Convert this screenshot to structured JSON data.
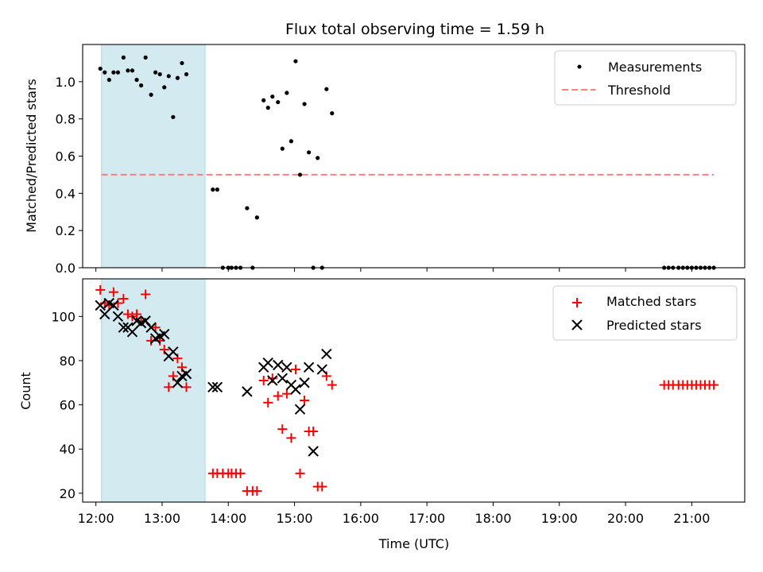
{
  "chart_data": [
    {
      "type": "scatter",
      "title": "Flux total observing time = 1.59 h",
      "xlabel": "",
      "ylabel": "Matched/Predicted stars",
      "ylim": [
        0,
        1.2
      ],
      "yticks": [
        "0.0",
        "0.2",
        "0.4",
        "0.6",
        "0.8",
        "1.0"
      ],
      "x_range_hours": [
        11.8,
        21.8
      ],
      "shaded_span": {
        "from": "12:05",
        "to": "13:39",
        "color": "#d3eaf1"
      },
      "legend": {
        "placement": "top-right",
        "entries": [
          "Measurements",
          "Threshold"
        ]
      },
      "threshold": {
        "name": "Threshold",
        "value": 0.5,
        "from": "12:05",
        "to": "21:20",
        "color": "#ff7f7f",
        "style": "dashed"
      },
      "series": [
        {
          "name": "Measurements",
          "marker": "dot",
          "color": "#000000",
          "points": [
            [
              "12:04",
              1.07
            ],
            [
              "12:08",
              1.05
            ],
            [
              "12:12",
              1.01
            ],
            [
              "12:16",
              1.05
            ],
            [
              "12:20",
              1.05
            ],
            [
              "12:25",
              1.13
            ],
            [
              "12:29",
              1.06
            ],
            [
              "12:33",
              1.06
            ],
            [
              "12:37",
              1.01
            ],
            [
              "12:41",
              0.98
            ],
            [
              "12:45",
              1.13
            ],
            [
              "12:50",
              0.93
            ],
            [
              "12:54",
              1.05
            ],
            [
              "12:58",
              1.04
            ],
            [
              "13:02",
              0.97
            ],
            [
              "13:06",
              1.03
            ],
            [
              "13:10",
              0.81
            ],
            [
              "13:14",
              1.02
            ],
            [
              "13:18",
              1.1
            ],
            [
              "13:22",
              1.04
            ],
            [
              "13:46",
              0.42
            ],
            [
              "13:50",
              0.42
            ],
            [
              "13:55",
              0.0
            ],
            [
              "14:00",
              0.0
            ],
            [
              "14:03",
              0.0
            ],
            [
              "14:07",
              0.0
            ],
            [
              "14:11",
              0.0
            ],
            [
              "14:17",
              0.32
            ],
            [
              "14:22",
              0.0
            ],
            [
              "14:26",
              0.27
            ],
            [
              "14:32",
              0.9
            ],
            [
              "14:36",
              0.86
            ],
            [
              "14:40",
              0.92
            ],
            [
              "14:45",
              0.89
            ],
            [
              "14:49",
              0.64
            ],
            [
              "14:53",
              0.94
            ],
            [
              "14:57",
              0.68
            ],
            [
              "15:01",
              1.11
            ],
            [
              "15:05",
              0.5
            ],
            [
              "15:09",
              0.88
            ],
            [
              "15:13",
              0.62
            ],
            [
              "15:17",
              0.0
            ],
            [
              "15:21",
              0.59
            ],
            [
              "15:25",
              0.0
            ],
            [
              "15:29",
              0.96
            ],
            [
              "15:34",
              0.83
            ],
            [
              "20:35",
              0.0
            ],
            [
              "20:39",
              0.0
            ],
            [
              "20:43",
              0.0
            ],
            [
              "20:48",
              0.0
            ],
            [
              "20:52",
              0.0
            ],
            [
              "20:56",
              0.0
            ],
            [
              "21:00",
              0.0
            ],
            [
              "21:04",
              0.0
            ],
            [
              "21:08",
              0.0
            ],
            [
              "21:12",
              0.0
            ],
            [
              "21:16",
              0.0
            ],
            [
              "21:20",
              0.0
            ]
          ]
        }
      ]
    },
    {
      "type": "scatter",
      "title": "",
      "xlabel": "Time (UTC)",
      "ylabel": "Count",
      "ylim": [
        16,
        117
      ],
      "yticks": [
        "20",
        "40",
        "60",
        "80",
        "100"
      ],
      "xticks": [
        "12:00",
        "13:00",
        "14:00",
        "15:00",
        "16:00",
        "17:00",
        "18:00",
        "19:00",
        "20:00",
        "21:00"
      ],
      "x_range_hours": [
        11.8,
        21.8
      ],
      "shaded_span": {
        "from": "12:05",
        "to": "13:39",
        "color": "#d3eaf1"
      },
      "legend": {
        "placement": "top-right",
        "entries": [
          "Matched stars",
          "Predicted stars"
        ]
      },
      "series": [
        {
          "name": "Matched stars",
          "marker": "plus",
          "color": "#ff0000",
          "points": [
            [
              "12:04",
              112
            ],
            [
              "12:08",
              106
            ],
            [
              "12:12",
              105
            ],
            [
              "12:16",
              111
            ],
            [
              "12:20",
              106
            ],
            [
              "12:25",
              108
            ],
            [
              "12:29",
              101
            ],
            [
              "12:33",
              100
            ],
            [
              "12:37",
              101
            ],
            [
              "12:41",
              98
            ],
            [
              "12:45",
              110
            ],
            [
              "12:50",
              89
            ],
            [
              "12:54",
              95
            ],
            [
              "12:58",
              89
            ],
            [
              "13:02",
              85
            ],
            [
              "13:06",
              68
            ],
            [
              "13:10",
              73
            ],
            [
              "13:14",
              81
            ],
            [
              "13:18",
              77
            ],
            [
              "13:22",
              68
            ],
            [
              "13:46",
              29
            ],
            [
              "13:50",
              29
            ],
            [
              "13:55",
              29
            ],
            [
              "14:00",
              29
            ],
            [
              "14:03",
              29
            ],
            [
              "14:07",
              29
            ],
            [
              "14:11",
              29
            ],
            [
              "14:17",
              21
            ],
            [
              "14:22",
              21
            ],
            [
              "14:26",
              21
            ],
            [
              "14:32",
              71
            ],
            [
              "14:36",
              61
            ],
            [
              "14:40",
              72
            ],
            [
              "14:45",
              64
            ],
            [
              "14:49",
              49
            ],
            [
              "14:53",
              65
            ],
            [
              "14:57",
              45
            ],
            [
              "15:01",
              76
            ],
            [
              "15:05",
              29
            ],
            [
              "15:09",
              62
            ],
            [
              "15:13",
              48
            ],
            [
              "15:17",
              48
            ],
            [
              "15:21",
              23
            ],
            [
              "15:25",
              23
            ],
            [
              "15:29",
              73
            ],
            [
              "15:34",
              69
            ],
            [
              "20:35",
              69
            ],
            [
              "20:39",
              69
            ],
            [
              "20:43",
              69
            ],
            [
              "20:48",
              69
            ],
            [
              "20:52",
              69
            ],
            [
              "20:56",
              69
            ],
            [
              "21:00",
              69
            ],
            [
              "21:04",
              69
            ],
            [
              "21:08",
              69
            ],
            [
              "21:12",
              69
            ],
            [
              "21:16",
              69
            ],
            [
              "21:20",
              69
            ]
          ]
        },
        {
          "name": "Predicted stars",
          "marker": "x",
          "color": "#000000",
          "points": [
            [
              "12:04",
              105
            ],
            [
              "12:08",
              101
            ],
            [
              "12:12",
              106
            ],
            [
              "12:16",
              105
            ],
            [
              "12:20",
              100
            ],
            [
              "12:25",
              95
            ],
            [
              "12:29",
              95
            ],
            [
              "12:33",
              93
            ],
            [
              "12:37",
              98
            ],
            [
              "12:41",
              97
            ],
            [
              "12:45",
              98
            ],
            [
              "12:50",
              95
            ],
            [
              "12:54",
              90
            ],
            [
              "12:58",
              91
            ],
            [
              "13:02",
              92
            ],
            [
              "13:06",
              82
            ],
            [
              "13:10",
              84
            ],
            [
              "13:14",
              70
            ],
            [
              "13:18",
              73
            ],
            [
              "13:22",
              74
            ],
            [
              "13:46",
              68
            ],
            [
              "13:50",
              68
            ],
            [
              "14:17",
              66
            ],
            [
              "14:32",
              77
            ],
            [
              "14:36",
              79
            ],
            [
              "14:40",
              71
            ],
            [
              "14:45",
              78
            ],
            [
              "14:49",
              72
            ],
            [
              "14:53",
              77
            ],
            [
              "14:57",
              69
            ],
            [
              "15:01",
              67
            ],
            [
              "15:05",
              58
            ],
            [
              "15:09",
              70
            ],
            [
              "15:13",
              77
            ],
            [
              "15:17",
              39
            ],
            [
              "15:25",
              76
            ],
            [
              "15:29",
              83
            ]
          ]
        }
      ]
    }
  ]
}
